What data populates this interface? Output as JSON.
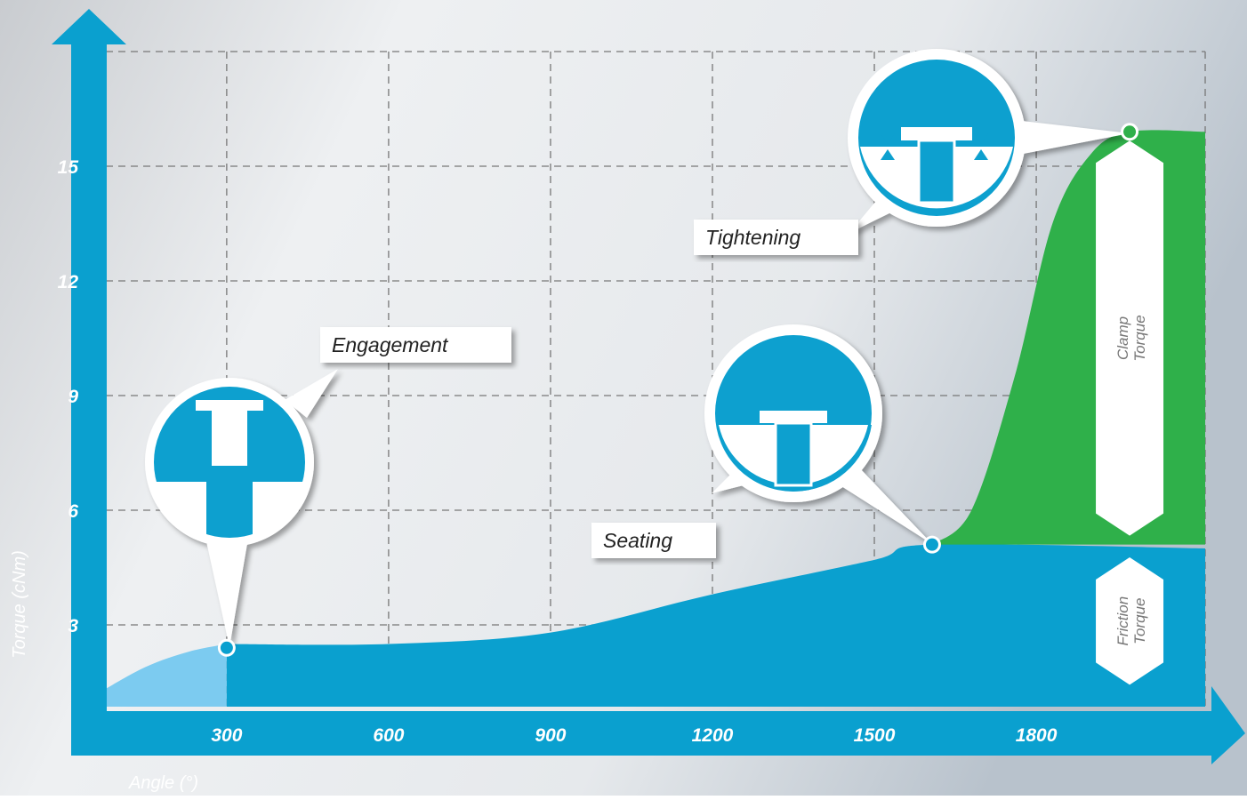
{
  "chart_data": {
    "type": "area",
    "y_label": "Torque (cNm)",
    "x_label": "Angle (°)",
    "xlim": [
      53,
      2113
    ],
    "ylim": [
      0.86,
      18
    ],
    "xticks": [
      300,
      600,
      900,
      1200,
      1500,
      1800
    ],
    "yticks": [
      3,
      6,
      9,
      12,
      15
    ],
    "grid": true,
    "series": [
      {
        "color": "#7ccbf0",
        "x": [
          60,
          150,
          230,
          300
        ],
        "values": [
          1.2,
          1.9,
          2.3,
          2.5
        ]
      },
      {
        "color": "#0aa0cf",
        "x": [
          300,
          600,
          900,
          1200,
          1500,
          1607,
          2113
        ],
        "values": [
          2.5,
          2.5,
          2.8,
          3.8,
          4.7,
          5.1,
          5.0
        ]
      },
      {
        "color": "#2fb04a",
        "x": [
          1607,
          1680,
          1760,
          1830,
          1900,
          1973,
          2113
        ],
        "values": [
          5.1,
          6.0,
          9.5,
          13.5,
          15.3,
          15.9,
          15.9
        ]
      }
    ],
    "annotations": [
      {
        "text": "Engagement",
        "x": 300,
        "y": 2.4
      },
      {
        "text": "Seating",
        "x": 1607,
        "y": 5.1
      },
      {
        "text": "Tightening",
        "x": 1973,
        "y": 15.9
      }
    ],
    "bands": [
      {
        "text": "Clamp Torque",
        "x": 1973,
        "from": 5.1,
        "to": 15.9
      },
      {
        "text": "Friction Torque",
        "x": 1973,
        "from": 1.2,
        "to": 5.0
      }
    ]
  }
}
